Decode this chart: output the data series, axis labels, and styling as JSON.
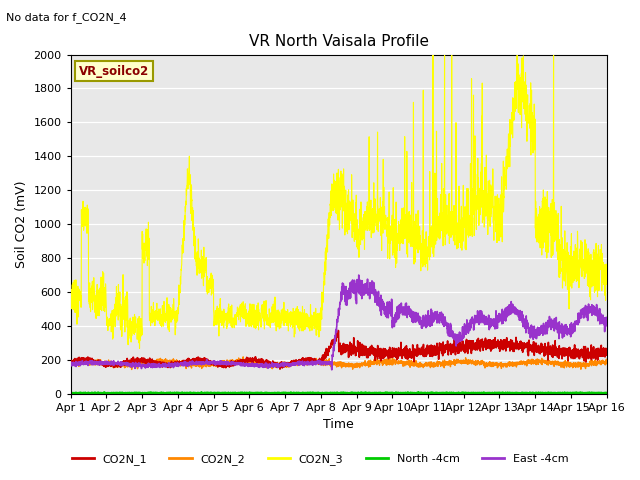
{
  "title": "VR North Vaisala Profile",
  "subtitle": "No data for f_CO2N_4",
  "xlabel": "Time",
  "ylabel": "Soil CO2 (mV)",
  "box_label": "VR_soilco2",
  "ylim": [
    0,
    2000
  ],
  "xlim": [
    0,
    15
  ],
  "xtick_labels": [
    "Apr 1",
    "Apr 2",
    "Apr 3",
    "Apr 4",
    "Apr 5",
    "Apr 6",
    "Apr 7",
    "Apr 8",
    "Apr 9",
    "Apr 10",
    "Apr 11",
    "Apr 12",
    "Apr 13",
    "Apr 14",
    "Apr 15",
    "Apr 16"
  ],
  "ytick_values": [
    0,
    200,
    400,
    600,
    800,
    1000,
    1200,
    1400,
    1600,
    1800,
    2000
  ],
  "bg_color": "#e8e8e8",
  "colors": {
    "CO2N_1": "#cc0000",
    "CO2N_2": "#ff8800",
    "CO2N_3": "#ffff00",
    "North_4cm": "#00cc00",
    "East_4cm": "#9933cc"
  },
  "legend_labels": [
    "CO2N_1",
    "CO2N_2",
    "CO2N_3",
    "North -4cm",
    "East -4cm"
  ],
  "figsize": [
    6.4,
    4.8
  ],
  "dpi": 100
}
